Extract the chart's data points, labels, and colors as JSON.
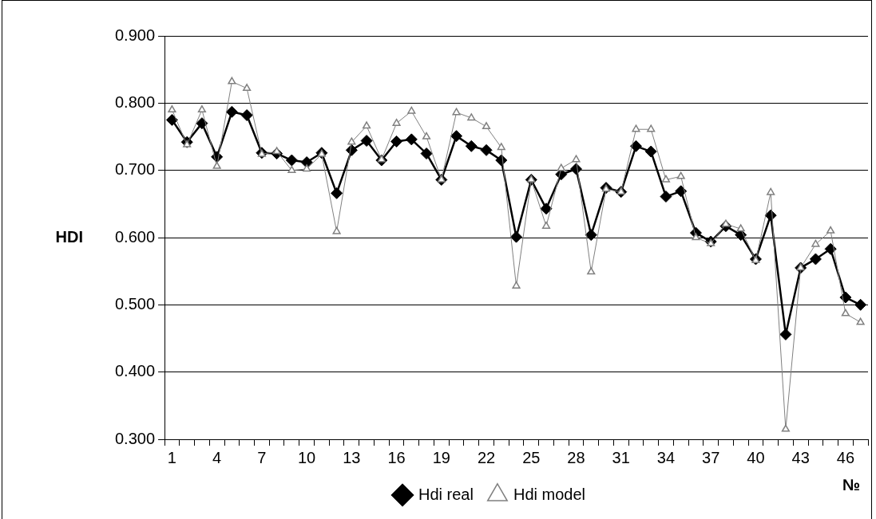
{
  "chart_data": {
    "type": "line",
    "xlabel": "№",
    "ylabel": "HDI",
    "categories": [
      "1",
      null,
      null,
      "4",
      null,
      null,
      "7",
      null,
      null,
      "10",
      null,
      null,
      "13",
      null,
      null,
      "16",
      null,
      null,
      "19",
      null,
      null,
      "22",
      null,
      null,
      "25",
      null,
      null,
      "28",
      null,
      null,
      "31",
      null,
      null,
      "34",
      null,
      null,
      "37",
      null,
      null,
      "40",
      null,
      null,
      "43",
      null,
      null,
      "46",
      null
    ],
    "series": [
      {
        "name": "Hdi real",
        "color": "#000000",
        "marker": "diamond",
        "values": [
          0.775,
          0.742,
          0.77,
          0.72,
          0.787,
          0.782,
          0.726,
          0.725,
          0.715,
          0.712,
          0.726,
          0.666,
          0.73,
          0.744,
          0.715,
          0.743,
          0.746,
          0.725,
          0.686,
          0.751,
          0.736,
          0.73,
          0.715,
          0.601,
          0.686,
          0.643,
          0.694,
          0.702,
          0.604,
          0.674,
          0.668,
          0.736,
          0.728,
          0.661,
          0.669,
          0.607,
          0.594,
          0.617,
          0.604,
          0.568,
          0.633,
          0.456,
          0.555,
          0.568,
          0.583,
          0.511,
          0.5
        ]
      },
      {
        "name": "Hdi model",
        "color": "#808080",
        "marker": "triangle",
        "values": [
          0.79,
          0.738,
          0.79,
          0.706,
          0.832,
          0.822,
          0.724,
          0.728,
          0.7,
          0.702,
          0.724,
          0.609,
          0.742,
          0.766,
          0.716,
          0.77,
          0.788,
          0.75,
          0.686,
          0.786,
          0.778,
          0.765,
          0.734,
          0.528,
          0.686,
          0.617,
          0.703,
          0.716,
          0.549,
          0.672,
          0.668,
          0.761,
          0.761,
          0.686,
          0.691,
          0.6,
          0.591,
          0.62,
          0.613,
          0.566,
          0.667,
          0.315,
          0.555,
          0.59,
          0.61,
          0.487,
          0.474
        ]
      }
    ],
    "ylim": [
      0.3,
      0.9
    ],
    "yticks": [
      {
        "value": 0.3,
        "label": "0.300"
      },
      {
        "value": 0.4,
        "label": "0.400"
      },
      {
        "value": 0.5,
        "label": "0.500"
      },
      {
        "value": 0.6,
        "label": "0.600"
      },
      {
        "value": 0.7,
        "label": "0.700"
      },
      {
        "value": 0.8,
        "label": "0.800"
      },
      {
        "value": 0.9,
        "label": "0.900"
      }
    ],
    "grid": "y",
    "legend": "bottom"
  }
}
